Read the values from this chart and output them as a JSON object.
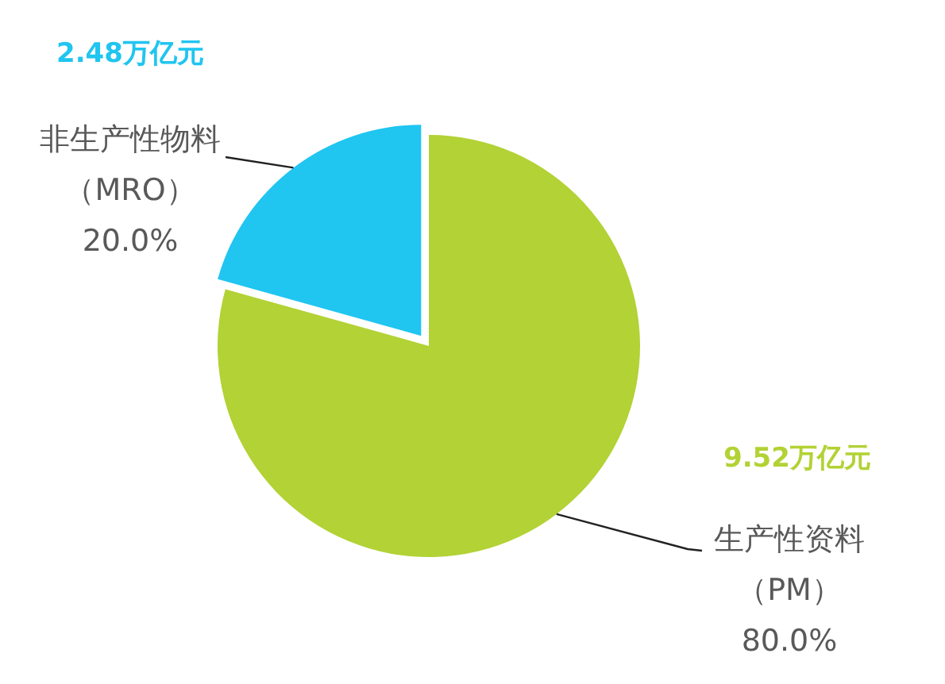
{
  "chart_data": {
    "type": "pie",
    "categories": [
      "生产性资料（PM）",
      "非生产性物料（MRO）"
    ],
    "values": [
      9.52,
      2.48
    ],
    "colors": [
      "#b2d235",
      "#20c5f0"
    ],
    "value_labels": [
      "9.52万亿元",
      "2.48万亿元"
    ],
    "annotations": [
      "80.0%",
      "20.0%"
    ]
  }
}
